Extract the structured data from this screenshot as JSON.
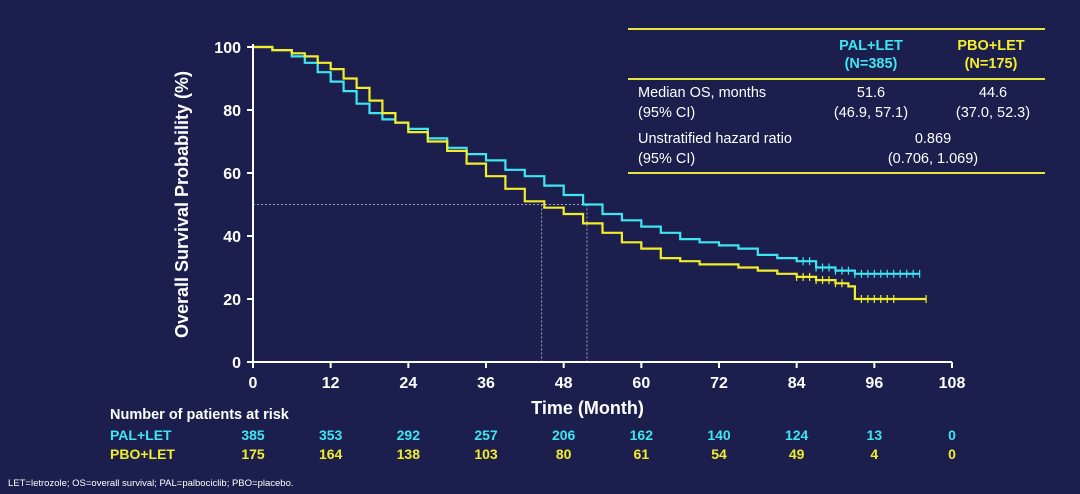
{
  "colors": {
    "background": "#1c1f4d",
    "pal_let": "#3ee6f2",
    "pbo_let": "#f2ee2a",
    "rule": "#e6e63c",
    "axis": "#ffffff"
  },
  "chart_data": {
    "type": "line",
    "title": "",
    "xlabel": "Time (Month)",
    "ylabel": "Overall Survival Probability (%)",
    "xlim": [
      0,
      108
    ],
    "ylim": [
      0,
      100
    ],
    "xticks": [
      0,
      12,
      24,
      36,
      48,
      60,
      72,
      84,
      96,
      108
    ],
    "yticks": [
      0,
      20,
      40,
      60,
      80,
      100
    ],
    "median_reference": {
      "y": 50,
      "x_pal_let": 51.6,
      "x_pbo_let": 44.6
    },
    "series": [
      {
        "name": "PAL+LET",
        "color": "#3ee6f2",
        "x": [
          0,
          3,
          6,
          8,
          10,
          12,
          14,
          16,
          18,
          20,
          22,
          24,
          27,
          30,
          33,
          36,
          39,
          42,
          45,
          48,
          51,
          54,
          57,
          60,
          63,
          66,
          69,
          72,
          75,
          78,
          81,
          84,
          87,
          90,
          93,
          96,
          100,
          103
        ],
        "y": [
          100,
          99,
          97,
          95,
          92,
          89,
          86,
          82,
          79,
          77,
          76,
          74,
          71,
          68,
          66,
          64,
          61,
          59,
          56,
          53,
          50,
          47,
          45,
          43,
          41,
          39,
          38,
          37,
          36,
          34,
          33,
          32,
          30,
          29,
          28,
          28,
          28,
          28
        ],
        "censor_x": [
          85,
          86,
          87,
          88,
          89,
          90,
          91,
          92,
          93,
          94,
          95,
          96,
          97,
          98,
          99,
          100,
          101,
          102,
          103
        ]
      },
      {
        "name": "PBO+LET",
        "color": "#f2ee2a",
        "x": [
          0,
          3,
          6,
          8,
          10,
          12,
          14,
          16,
          18,
          20,
          22,
          24,
          27,
          30,
          33,
          36,
          39,
          42,
          45,
          48,
          51,
          54,
          57,
          60,
          63,
          66,
          69,
          72,
          75,
          78,
          81,
          84,
          87,
          90,
          92,
          93,
          96,
          104
        ],
        "y": [
          100,
          99,
          98,
          97,
          95,
          93,
          90,
          87,
          83,
          79,
          76,
          73,
          70,
          67,
          63,
          59,
          55,
          51,
          49,
          47,
          44,
          41,
          38,
          36,
          33,
          32,
          31,
          31,
          30,
          29,
          28,
          27,
          26,
          25,
          24,
          20,
          20,
          20
        ],
        "censor_x": [
          84,
          85,
          86,
          87,
          88,
          89,
          90,
          91,
          94,
          95,
          96,
          97,
          98,
          99,
          104
        ]
      }
    ]
  },
  "stats_table": {
    "header_pal": "PAL+LET",
    "header_pal_n": "(N=385)",
    "header_pbo": "PBO+LET",
    "header_pbo_n": "(N=175)",
    "median_label": "Median OS, months",
    "median_ci_label": "(95% CI)",
    "median_pal": "51.6",
    "median_pal_ci": "(46.9, 57.1)",
    "median_pbo": "44.6",
    "median_pbo_ci": "(37.0, 52.3)",
    "hr_label": "Unstratified hazard ratio",
    "hr_ci_label": "(95% CI)",
    "hr_value": "0.869",
    "hr_ci": "(0.706, 1.069)"
  },
  "risk_table": {
    "title": "Number of patients at risk",
    "rows": [
      {
        "label": "PAL+LET",
        "values": [
          "385",
          "353",
          "292",
          "257",
          "206",
          "162",
          "140",
          "124",
          "13",
          "0"
        ]
      },
      {
        "label": "PBO+LET",
        "values": [
          "175",
          "164",
          "138",
          "103",
          "80",
          "61",
          "54",
          "49",
          "4",
          "0"
        ]
      }
    ]
  },
  "footnote": "LET=letrozole; OS=overall survival;  PAL=palbociclib; PBO=placebo."
}
